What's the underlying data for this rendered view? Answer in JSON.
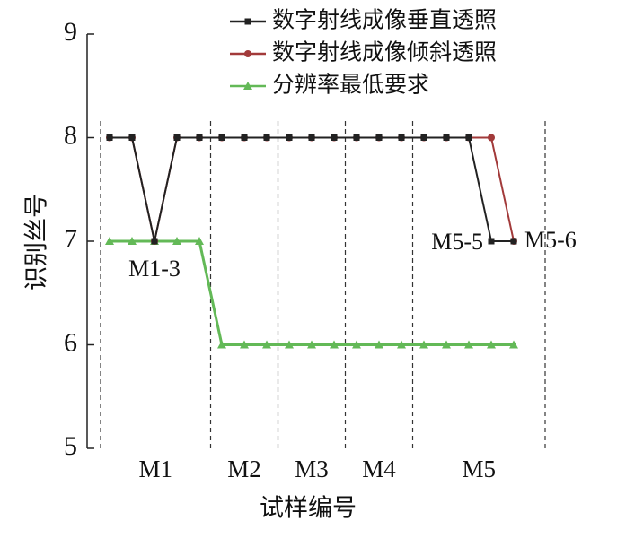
{
  "chart_data": {
    "type": "line",
    "x_label": "试样编号",
    "y_label": "识别丝号",
    "categories": [
      "M1",
      "M1",
      "M1",
      "M1",
      "M1",
      "M2",
      "M2",
      "M2",
      "M3",
      "M3",
      "M3",
      "M4",
      "M4",
      "M4",
      "M5",
      "M5",
      "M5",
      "M5",
      "M5"
    ],
    "series": [
      {
        "name": "数字射线成像垂直透照",
        "color": "#222222",
        "marker": "square",
        "values": [
          8,
          8,
          7,
          8,
          8,
          8,
          8,
          8,
          8,
          8,
          8,
          8,
          8,
          8,
          8,
          8,
          8,
          7,
          7
        ]
      },
      {
        "name": "数字射线成像倾斜透照",
        "color": "#a23a3a",
        "marker": "circle",
        "values": [
          8,
          8,
          7,
          8,
          8,
          8,
          8,
          8,
          8,
          8,
          8,
          8,
          8,
          8,
          8,
          8,
          8,
          8,
          7
        ]
      },
      {
        "name": "分辨率最低要求",
        "color": "#63b957",
        "marker": "triangle",
        "values": [
          7,
          7,
          7,
          7,
          7,
          6,
          6,
          6,
          6,
          6,
          6,
          6,
          6,
          6,
          6,
          6,
          6,
          6,
          6
        ]
      }
    ],
    "annotations": [
      "M1-3",
      "M5-5",
      "M5-6"
    ],
    "ylim": [
      5,
      9
    ],
    "yticks": [
      5,
      6,
      7,
      8,
      9
    ],
    "legend": "top-right"
  }
}
